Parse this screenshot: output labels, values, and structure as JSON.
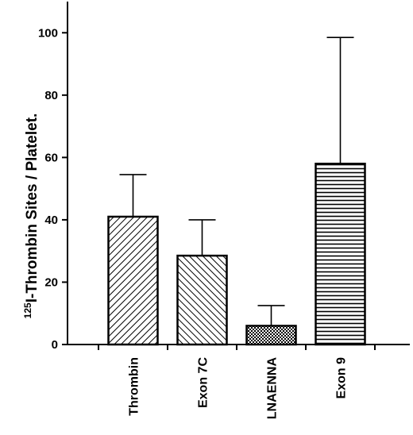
{
  "chart_data": {
    "type": "bar",
    "categories": [
      "Thrombin",
      "Exon 7C",
      "LNAENNA",
      "Exon 9"
    ],
    "values": [
      41,
      28.5,
      6,
      58
    ],
    "error_upper": [
      54.5,
      40,
      12.5,
      98.5
    ],
    "bar_patterns": [
      "diagonal-right",
      "diagonal-left",
      "crosshatch",
      "horizontal"
    ],
    "ylabel_sup": "125",
    "ylabel_main": "I-Thrombin Sites / Platelet.",
    "ylim": [
      0,
      110
    ],
    "yticks": [
      0,
      20,
      40,
      60,
      80,
      100
    ],
    "xticks_count": 5,
    "grid": false,
    "title": "",
    "xlabel": ""
  }
}
